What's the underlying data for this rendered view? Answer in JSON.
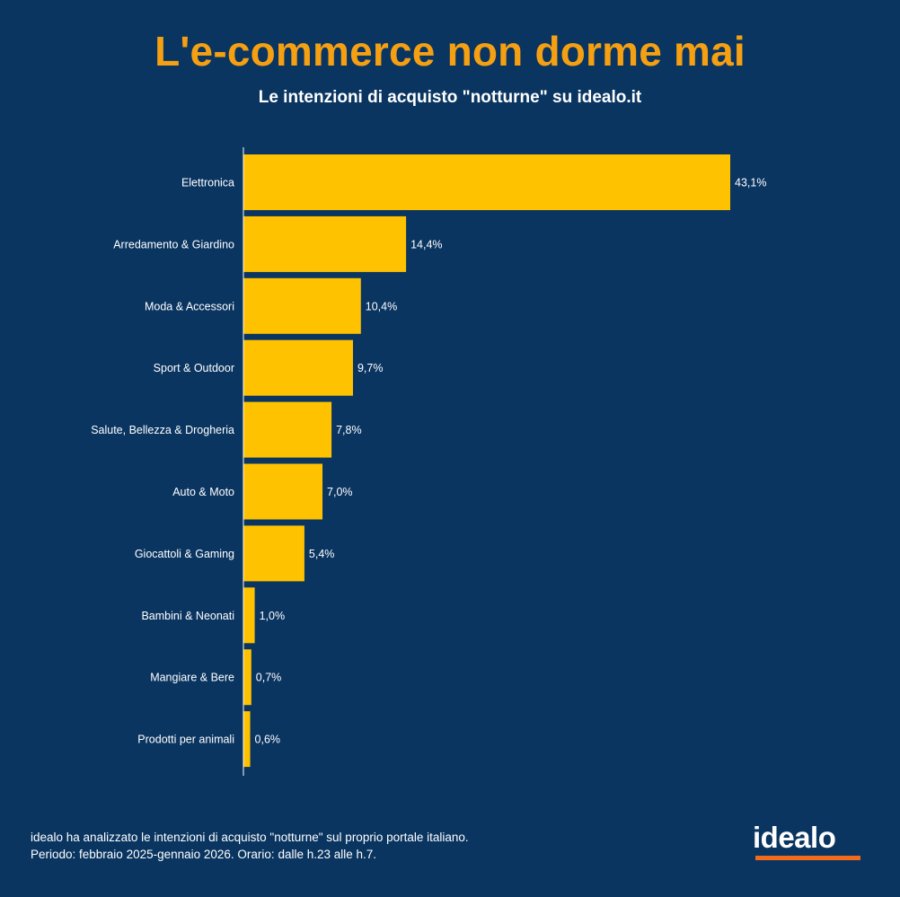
{
  "header": {
    "title": "L'e-commerce non dorme mai",
    "subtitle": "Le intenzioni di acquisto \"notturne\" su idealo.it"
  },
  "chart_data": {
    "type": "bar",
    "orientation": "horizontal",
    "categories": [
      "Elettronica",
      "Arredamento & Giardino",
      "Moda & Accessori",
      "Sport & Outdoor",
      "Salute, Bellezza & Drogheria",
      "Auto & Moto",
      "Giocattoli & Gaming",
      "Bambini & Neonati",
      "Mangiare & Bere",
      "Prodotti per animali"
    ],
    "values": [
      43.1,
      14.4,
      10.4,
      9.7,
      7.8,
      7.0,
      5.4,
      1.0,
      0.7,
      0.6
    ],
    "value_labels": [
      "43,1%",
      "14,4%",
      "10,4%",
      "9,7%",
      "7,8%",
      "7,0%",
      "5,4%",
      "1,0%",
      "0,7%",
      "0,6%"
    ],
    "bar_color": "#fec200",
    "xlim": [
      0,
      43.1
    ],
    "grid": false
  },
  "footer": {
    "note": "idealo ha analizzato le intenzioni di acquisto \"notturne\" sul proprio portale italiano. Periodo: febbraio 2025-gennaio 2026. Orario: dalle h.23 alle h.7.",
    "logo_text": "idealo"
  },
  "colors": {
    "background": "#0a3561",
    "title": "#f5a012",
    "bar": "#fec200",
    "logo_accent": "#f26a1b"
  }
}
